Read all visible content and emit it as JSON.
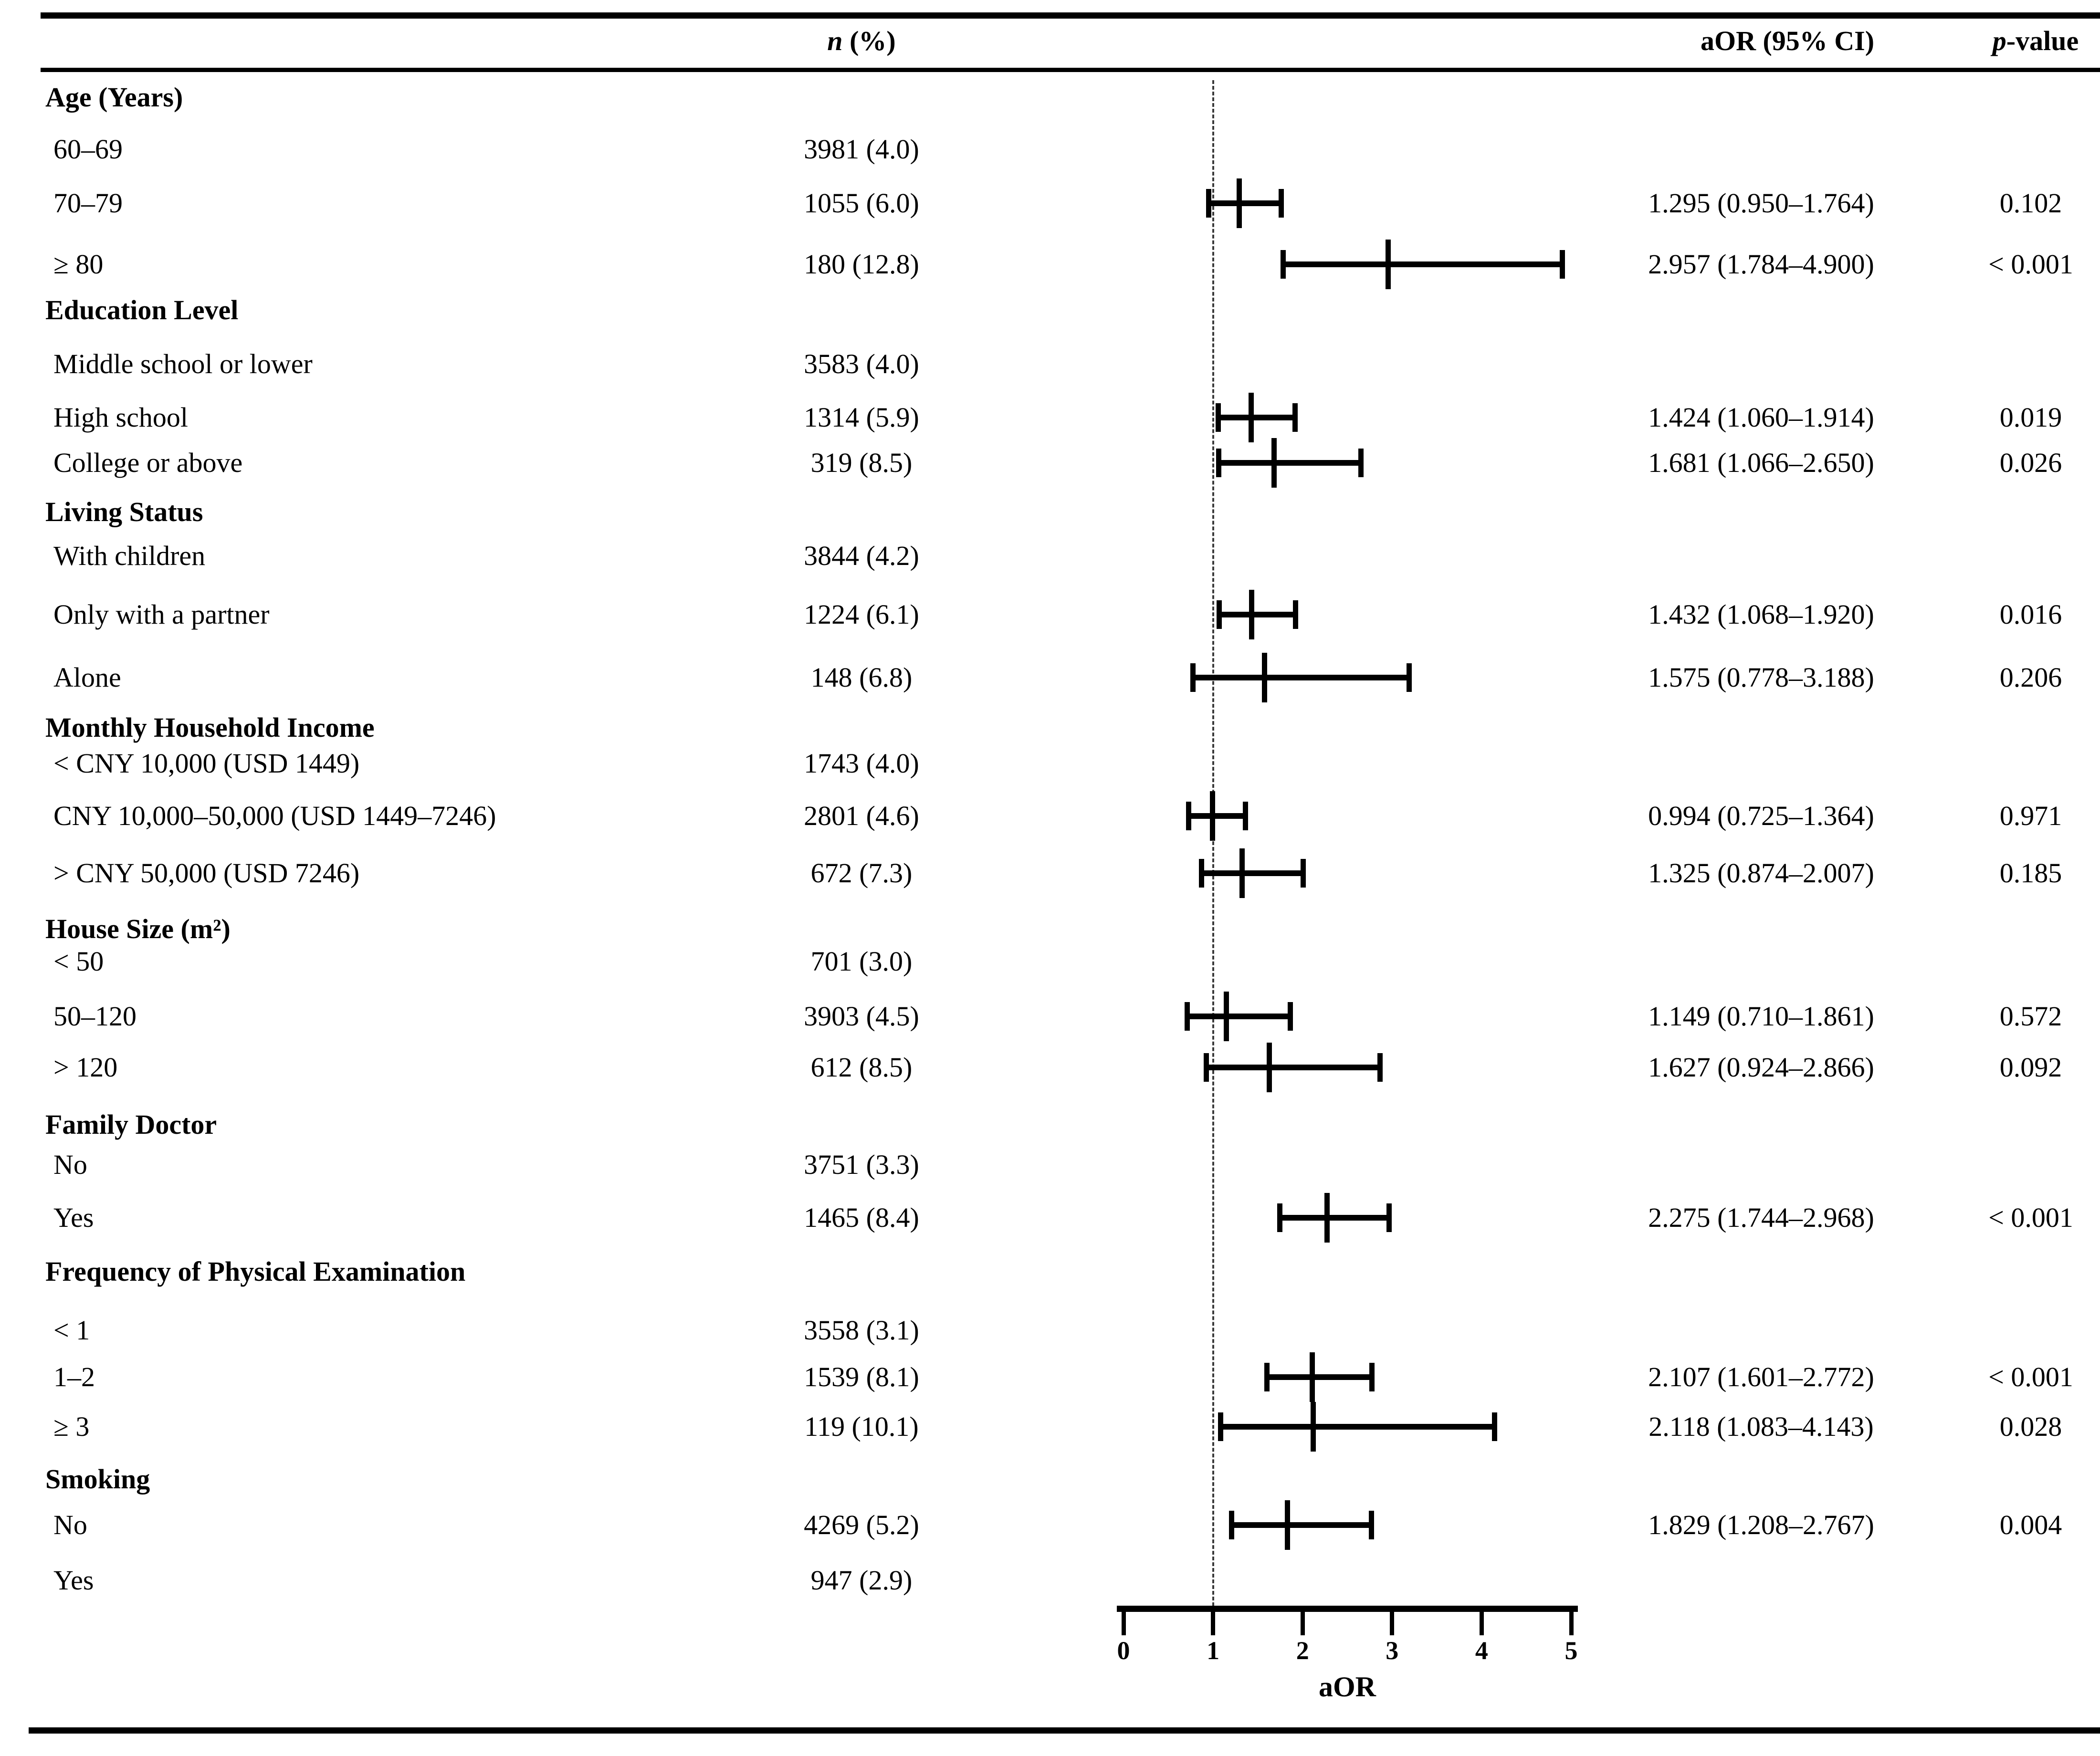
{
  "header": {
    "n_prefix": "n",
    "n_suffix": " (%)",
    "aor_label": "aOR (95% CI)",
    "p_prefix": "p",
    "p_suffix": "-value"
  },
  "colors": {
    "text": "#000000",
    "rule": "#000000",
    "reference_line": "#3a3a3a",
    "background": "#ffffff"
  },
  "chart_data": {
    "type": "scatter",
    "subtype": "forest-plot",
    "xlabel": "aOR",
    "xlim": [
      0,
      5
    ],
    "x_ticks": [
      "0",
      "1",
      "2",
      "3",
      "4",
      "5"
    ],
    "reference_line_x": 1,
    "grid": false,
    "rows": [
      {
        "label": "Age (Years)",
        "section": true
      },
      {
        "label": "60–69",
        "n": "3981 (4.0)"
      },
      {
        "label": "70–79",
        "n": "1055 (6.0)",
        "est": 1.295,
        "lo": 0.95,
        "hi": 1.764,
        "aor": "1.295 (0.950–1.764)",
        "p": "0.102"
      },
      {
        "label": "≥ 80",
        "n": "180 (12.8)",
        "est": 2.957,
        "lo": 1.784,
        "hi": 4.9,
        "aor": "2.957 (1.784–4.900)",
        "p": "< 0.001"
      },
      {
        "label": "Education Level",
        "section": true
      },
      {
        "label": "Middle school or lower",
        "n": "3583 (4.0)"
      },
      {
        "label": "High school",
        "n": "1314 (5.9)",
        "est": 1.424,
        "lo": 1.06,
        "hi": 1.914,
        "aor": "1.424 (1.060–1.914)",
        "p": "0.019"
      },
      {
        "label": "College or above",
        "n": "319 (8.5)",
        "est": 1.681,
        "lo": 1.066,
        "hi": 2.65,
        "aor": "1.681 (1.066–2.650)",
        "p": "0.026"
      },
      {
        "label": "Living Status",
        "section": true
      },
      {
        "label": "With children",
        "n": "3844 (4.2)"
      },
      {
        "label": "Only with a partner",
        "n": "1224 (6.1)",
        "est": 1.432,
        "lo": 1.068,
        "hi": 1.92,
        "aor": "1.432 (1.068–1.920)",
        "p": "0.016"
      },
      {
        "label": "Alone",
        "n": "148 (6.8)",
        "est": 1.575,
        "lo": 0.778,
        "hi": 3.188,
        "aor": "1.575 (0.778–3.188)",
        "p": "0.206"
      },
      {
        "label": "Monthly Household Income",
        "section": true
      },
      {
        "label": "< CNY 10,000 (USD 1449)",
        "n": "1743 (4.0)"
      },
      {
        "label": "CNY 10,000–50,000 (USD 1449–7246)",
        "n": "2801 (4.6)",
        "est": 0.994,
        "lo": 0.725,
        "hi": 1.364,
        "aor": "0.994 (0.725–1.364)",
        "p": "0.971"
      },
      {
        "label": "> CNY 50,000 (USD 7246)",
        "n": "672 (7.3)",
        "est": 1.325,
        "lo": 0.874,
        "hi": 2.007,
        "aor": "1.325 (0.874–2.007)",
        "p": "0.185"
      },
      {
        "label": "House Size (m²)",
        "section": true
      },
      {
        "label": "< 50",
        "n": "701 (3.0)"
      },
      {
        "label": "50–120",
        "n": "3903 (4.5)",
        "est": 1.149,
        "lo": 0.71,
        "hi": 1.861,
        "aor": "1.149 (0.710–1.861)",
        "p": "0.572"
      },
      {
        "label": "> 120",
        "n": "612 (8.5)",
        "est": 1.627,
        "lo": 0.924,
        "hi": 2.866,
        "aor": "1.627 (0.924–2.866)",
        "p": "0.092"
      },
      {
        "label": "Family Doctor",
        "section": true
      },
      {
        "label": "No",
        "n": "3751 (3.3)"
      },
      {
        "label": "Yes",
        "n": "1465 (8.4)",
        "est": 2.275,
        "lo": 1.744,
        "hi": 2.968,
        "aor": "2.275 (1.744–2.968)",
        "p": "< 0.001"
      },
      {
        "label": "Frequency of Physical Examination",
        "section": true
      },
      {
        "label": "< 1",
        "n": "3558 (3.1)"
      },
      {
        "label": "1–2",
        "n": "1539 (8.1)",
        "est": 2.107,
        "lo": 1.601,
        "hi": 2.772,
        "aor": "2.107 (1.601–2.772)",
        "p": "< 0.001"
      },
      {
        "label": "≥ 3",
        "n": "119 (10.1)",
        "est": 2.118,
        "lo": 1.083,
        "hi": 4.143,
        "aor": "2.118 (1.083–4.143)",
        "p": "0.028"
      },
      {
        "label": "Smoking",
        "section": true
      },
      {
        "label": "No",
        "n": "4269 (5.2)",
        "est": 1.829,
        "lo": 1.208,
        "hi": 2.767,
        "aor": "1.829 (1.208–2.767)",
        "p": "0.004"
      },
      {
        "label": "Yes",
        "n": "947 (2.9)"
      }
    ]
  }
}
